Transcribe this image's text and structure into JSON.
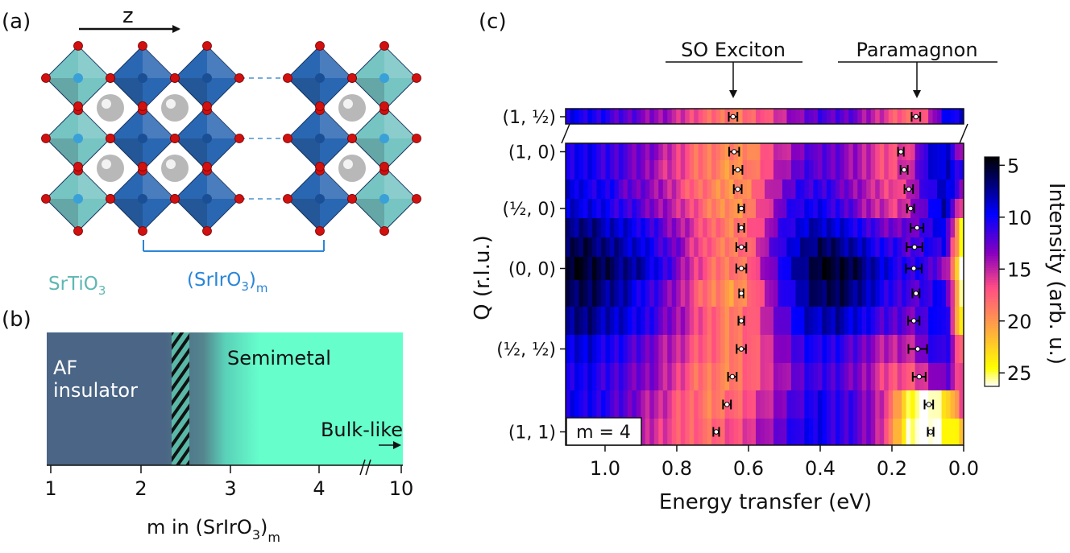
{
  "panel_a": {
    "label": "(a)",
    "axis_label": "z",
    "left_label": {
      "text": "SrTiO",
      "sub": "3"
    },
    "right_label": {
      "text": "(SrIrO",
      "sub": "3",
      "close": ")",
      "sub2": "m"
    },
    "colors": {
      "titanate": "#6fc2c0",
      "iridate": "#1f5fae",
      "oxygen": "#d11010",
      "strontium": "#b8b8b8",
      "label_left": "#5fb7b3",
      "label_right": "#2a86d8"
    }
  },
  "panel_b": {
    "label": "(b)",
    "phases": [
      {
        "name": "AF insulator",
        "line1": "AF",
        "line2": "insulator",
        "color": "#4a6585"
      },
      {
        "name": "Semimetal",
        "color": "#66ffcc"
      }
    ],
    "hatched_range": [
      2.4,
      2.6
    ],
    "bulk_label": "Bulk-like",
    "x_ticks": [
      "1",
      "2",
      "3",
      "4",
      "10"
    ],
    "x_label": {
      "text": "m in (SrIrO",
      "sub": "3",
      "close": ")",
      "sub2": "m"
    }
  },
  "chart_data": {
    "type": "heatmap",
    "panel_label": "(c)",
    "xlabel": "Energy transfer (eV)",
    "ylabel": "Q (r.l.u.)",
    "xlim": [
      1.11,
      0.0
    ],
    "x_ticks": [
      "1.0",
      "0.8",
      "0.6",
      "0.4",
      "0.2",
      "0.0"
    ],
    "x_tick_values": [
      1.0,
      0.8,
      0.6,
      0.4,
      0.2,
      0.0
    ],
    "annotations": [
      "SO Exciton",
      "Paramagnon"
    ],
    "inset_label": "m = 4",
    "colorbar": {
      "label": "Intensity (arb. u.)",
      "ticks": [
        "5",
        "10",
        "15",
        "20",
        "25"
      ],
      "tick_values": [
        5,
        10,
        15,
        20,
        25
      ],
      "range": [
        4.2,
        26.3
      ],
      "colormap": "gnuplot2"
    },
    "top_row": {
      "q_label": "(1, ½)"
    },
    "q_labels": [
      {
        "row": 0,
        "text": "(1, 0)"
      },
      {
        "row": 3,
        "text": "(½, 0)"
      },
      {
        "row": 6,
        "text": "(0, 0)"
      },
      {
        "row": 9,
        "text": "(½, ½)"
      },
      {
        "row": 12,
        "text": "(1, 1)"
      }
    ],
    "energies": [
      1.1,
      1.05,
      1.0,
      0.95,
      0.9,
      0.85,
      0.8,
      0.75,
      0.7,
      0.65,
      0.6,
      0.55,
      0.5,
      0.45,
      0.4,
      0.35,
      0.3,
      0.25,
      0.2,
      0.15,
      0.1,
      0.05,
      0.0
    ],
    "top_intensity": [
      10,
      10,
      11,
      12,
      13,
      14,
      15,
      17,
      18,
      19,
      18,
      17,
      15,
      13,
      12,
      12,
      13,
      15,
      17,
      18,
      16,
      10,
      9
    ],
    "intensity": [
      [
        10,
        10,
        11,
        12,
        13,
        14,
        16,
        18,
        19,
        19,
        20,
        17,
        15,
        13,
        12,
        13,
        14,
        16,
        17,
        16,
        10,
        8,
        16
      ],
      [
        10,
        10,
        11,
        12,
        13,
        15,
        16,
        18,
        19,
        20,
        19,
        17,
        14,
        12,
        12,
        13,
        14,
        16,
        17,
        15,
        10,
        8,
        12
      ],
      [
        9,
        10,
        10,
        12,
        13,
        14,
        16,
        18,
        19,
        20,
        19,
        16,
        13,
        11,
        11,
        12,
        14,
        15,
        17,
        15,
        11,
        8,
        14
      ],
      [
        9,
        9,
        10,
        11,
        12,
        14,
        15,
        17,
        19,
        20,
        19,
        16,
        12,
        10,
        10,
        11,
        13,
        15,
        16,
        15,
        11,
        8,
        18
      ],
      [
        7,
        7,
        8,
        9,
        10,
        12,
        14,
        16,
        18,
        19,
        18,
        15,
        11,
        9,
        8,
        9,
        10,
        12,
        13,
        13,
        11,
        9,
        26
      ],
      [
        6,
        6,
        7,
        8,
        9,
        11,
        13,
        16,
        18,
        19,
        18,
        14,
        10,
        8,
        6,
        7,
        8,
        10,
        11,
        12,
        11,
        10,
        27
      ],
      [
        5,
        5,
        6,
        7,
        8,
        10,
        13,
        16,
        18,
        19,
        18,
        14,
        10,
        7,
        5,
        5,
        6,
        8,
        10,
        11,
        11,
        14,
        27
      ],
      [
        6,
        6,
        7,
        8,
        10,
        12,
        14,
        17,
        19,
        20,
        19,
        15,
        11,
        8,
        6,
        6,
        7,
        9,
        11,
        12,
        11,
        10,
        27
      ],
      [
        7,
        7,
        8,
        9,
        10,
        12,
        14,
        16,
        18,
        19,
        18,
        15,
        12,
        9,
        8,
        8,
        9,
        11,
        12,
        13,
        11,
        9,
        27
      ],
      [
        9,
        9,
        10,
        11,
        12,
        14,
        15,
        17,
        18,
        19,
        18,
        16,
        13,
        11,
        10,
        11,
        12,
        14,
        15,
        15,
        12,
        10,
        20
      ],
      [
        10,
        10,
        11,
        12,
        13,
        14,
        16,
        18,
        19,
        19,
        18,
        16,
        14,
        12,
        11,
        12,
        13,
        15,
        17,
        17,
        15,
        12,
        18
      ],
      [
        10,
        10,
        11,
        12,
        14,
        15,
        17,
        18,
        19,
        18,
        17,
        15,
        13,
        11,
        10,
        11,
        12,
        14,
        18,
        25,
        27,
        24,
        16
      ],
      [
        10,
        10,
        11,
        12,
        14,
        16,
        17,
        18,
        18,
        17,
        16,
        14,
        12,
        10,
        10,
        11,
        12,
        14,
        19,
        26,
        27,
        25,
        22
      ]
    ],
    "top_peaks": {
      "exciton": 0.643,
      "exciton_err": 0.012,
      "paramagnon": 0.133,
      "paramagnon_err": 0.012
    },
    "peaks": {
      "exciton": [
        0.64,
        0.63,
        0.63,
        0.62,
        0.62,
        0.62,
        0.62,
        0.62,
        0.62,
        0.62,
        0.645,
        0.66,
        0.69
      ],
      "exciton_err": [
        0.014,
        0.013,
        0.011,
        0.008,
        0.008,
        0.014,
        0.014,
        0.006,
        0.008,
        0.013,
        0.012,
        0.011,
        0.008
      ],
      "paramagnon": [
        0.175,
        0.166,
        0.153,
        0.148,
        0.13,
        0.137,
        0.139,
        0.133,
        0.139,
        0.128,
        0.124,
        0.097,
        0.092
      ],
      "paramagnon_err": [
        0.008,
        0.01,
        0.012,
        0.01,
        0.018,
        0.022,
        0.022,
        0.01,
        0.016,
        0.026,
        0.018,
        0.012,
        0.008
      ]
    }
  }
}
